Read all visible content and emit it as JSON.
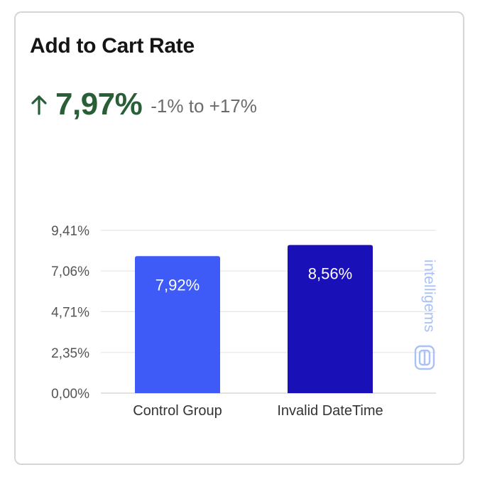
{
  "card": {
    "title": "Add to Cart Rate",
    "lift": {
      "direction": "up",
      "icon": "arrow-up-icon",
      "value": "7,97%",
      "range": "-1% to +17%",
      "color": "#285f37"
    }
  },
  "brand": {
    "name": "intelligems",
    "icon": "intelligems-logo-icon",
    "color": "#a9c1f4"
  },
  "chart_data": {
    "type": "bar",
    "title": "",
    "xlabel": "",
    "ylabel": "",
    "categories": [
      "Control Group",
      "Invalid DateTime"
    ],
    "values": [
      7.92,
      8.56
    ],
    "value_labels": [
      "7,92%",
      "8,56%"
    ],
    "colors": [
      "#3e5bf7",
      "#1a10b8"
    ],
    "ylim": [
      0,
      9.41
    ],
    "yticks": [
      0,
      2.35,
      4.71,
      7.06,
      9.41
    ],
    "ytick_labels": [
      "0,00%",
      "2,35%",
      "4,71%",
      "7,06%",
      "9,41%"
    ],
    "grid": true,
    "legend": "none"
  }
}
